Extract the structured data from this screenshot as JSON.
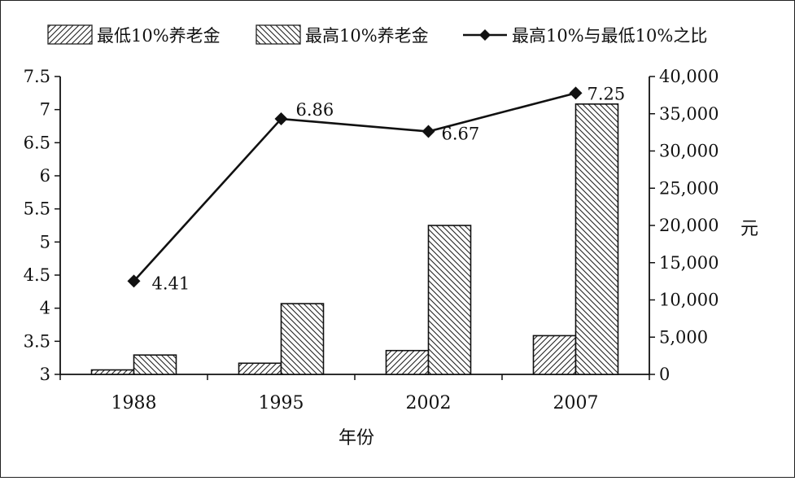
{
  "chart_data": {
    "type": "bar",
    "title": "",
    "categories": [
      "1988",
      "1995",
      "2002",
      "2007"
    ],
    "xlabel": "年份",
    "ylabel": "",
    "y2label": "元",
    "ylim": [
      3,
      7.5
    ],
    "y2lim": [
      0,
      40000
    ],
    "yticks": [
      "3",
      "3.5",
      "4",
      "4.5",
      "5",
      "5.5",
      "6",
      "6.5",
      "7",
      "7.5"
    ],
    "y2ticks": [
      "0",
      "5,000",
      "10,000",
      "15,000",
      "20,000",
      "25,000",
      "30,000",
      "35,000",
      "40,000"
    ],
    "series": [
      {
        "name": "最低10%养老金",
        "kind": "bar",
        "axis": "right",
        "pattern": "hatch-forward",
        "values": [
          600,
          1500,
          3200,
          5200
        ]
      },
      {
        "name": "最高10%养老金",
        "kind": "bar",
        "axis": "right",
        "pattern": "hatch-back",
        "values": [
          2600,
          9500,
          20000,
          36300
        ]
      },
      {
        "name": "最高10%与最低10%之比",
        "kind": "line",
        "axis": "left",
        "marker": "diamond",
        "values": [
          4.41,
          6.86,
          6.67,
          7.25
        ],
        "labels": [
          "4.41",
          "6.86",
          "6.67",
          "7.25"
        ]
      }
    ],
    "legend_position": "top",
    "grid": false
  }
}
